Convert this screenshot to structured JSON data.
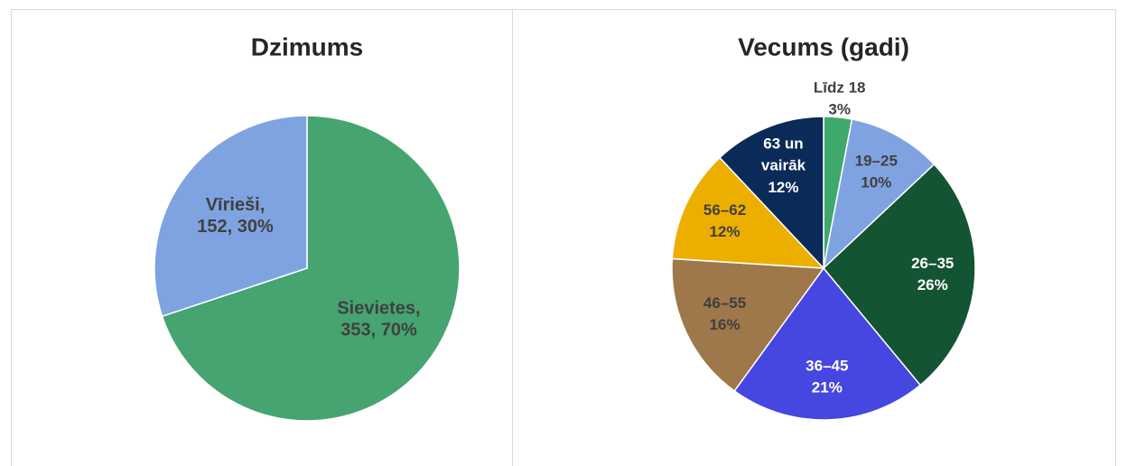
{
  "chart_data": [
    {
      "type": "pie",
      "title": "Dzimums",
      "categories": [
        "Sievietes,",
        "Vīrieši,"
      ],
      "values": [
        353,
        152
      ],
      "value_labels": [
        "353, 70%",
        "152, 30%"
      ],
      "colors": [
        "#46a470",
        "#7fa3e0"
      ]
    },
    {
      "type": "pie",
      "title": "Vecums (gadi)",
      "categories": [
        "Līdz 18",
        "19–25",
        "26–35",
        "36–45",
        "46–55",
        "56–62",
        "63 un vairāk"
      ],
      "values": [
        3,
        10,
        26,
        21,
        16,
        12,
        12
      ],
      "value_labels": [
        "3%",
        "10%",
        "26%",
        "21%",
        "16%",
        "12%",
        "12%"
      ],
      "colors": [
        "#3fa86a",
        "#7fa3e0",
        "#135433",
        "#4646e0",
        "#9e774a",
        "#ecaf00",
        "#0a2a57"
      ]
    }
  ]
}
